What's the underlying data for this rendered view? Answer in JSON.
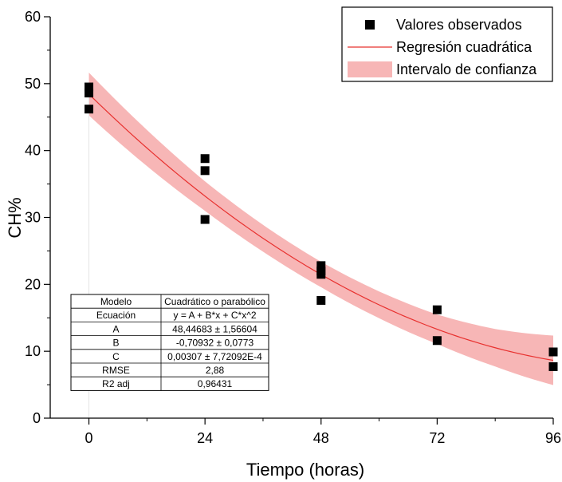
{
  "chart_data": {
    "type": "scatter",
    "title": "",
    "xlabel": "Tiempo (horas)",
    "ylabel": "CH%",
    "xlim": [
      -8,
      96
    ],
    "ylim": [
      0,
      60
    ],
    "xticks": [
      "0",
      "24",
      "48",
      "72",
      "96"
    ],
    "yticks": [
      "0",
      "10",
      "20",
      "30",
      "40",
      "50",
      "60"
    ],
    "grid": false,
    "legend_position": "top-right",
    "legend": [
      {
        "label": "Valores observados",
        "kind": "marker"
      },
      {
        "label": "Regresión cuadrática",
        "kind": "line"
      },
      {
        "label": "Intervalo de confianza",
        "kind": "band"
      }
    ],
    "colors": {
      "points": "#000000",
      "line": "#e8312f",
      "band": "#f7b6b6"
    },
    "series": [
      {
        "name": "Valores observados",
        "type": "scatter",
        "x": [
          0,
          0,
          0,
          24,
          24,
          24,
          48,
          48,
          48,
          48,
          72,
          72,
          96,
          96
        ],
        "y": [
          49.5,
          48.6,
          46.2,
          38.8,
          37.0,
          29.7,
          22.8,
          21.5,
          17.6,
          22.0,
          16.2,
          11.6,
          9.9,
          7.7
        ]
      },
      {
        "name": "Regresión cuadrática",
        "type": "line",
        "model": {
          "A": 48.44683,
          "B": -0.70932,
          "C": 0.00307
        },
        "x_range": [
          0,
          96
        ]
      },
      {
        "name": "Intervalo de confianza",
        "type": "band",
        "x": [
          0,
          12,
          24,
          36,
          48,
          60,
          72,
          84,
          96
        ],
        "half_width": [
          3.2,
          2.7,
          2.2,
          2.0,
          1.9,
          2.0,
          2.2,
          2.8,
          3.7
        ]
      }
    ],
    "stats_table": {
      "rows": [
        [
          "Modelo",
          "Cuadrático o parabólico"
        ],
        [
          "Ecuación",
          "y = A + B*x + C*x^2"
        ],
        [
          "A",
          "48,44683 ± 1,56604"
        ],
        [
          "B",
          "-0,70932 ± 0,0773"
        ],
        [
          "C",
          "0,00307 ± 7,72092E-4"
        ],
        [
          "RMSE",
          "2,88"
        ],
        [
          "R2 adj",
          "0,96431"
        ]
      ]
    }
  }
}
